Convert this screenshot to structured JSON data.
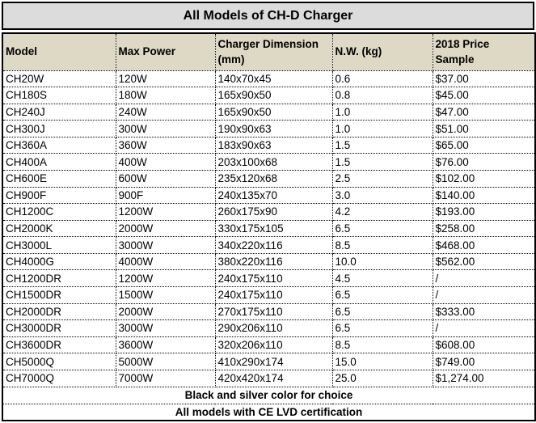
{
  "title": "All Models of CH-D Charger",
  "table": {
    "headers": [
      "Model",
      "Max Power",
      "Charger Dimension\n(mm)",
      "N.W. (kg)",
      "2018 Price\nSample"
    ],
    "rows": [
      [
        "CH20W",
        "120W",
        "140x70x45",
        "0.6",
        "$37.00"
      ],
      [
        "CH180S",
        "180W",
        "165x90x50",
        "0.8",
        "$45.00"
      ],
      [
        "CH240J",
        "240W",
        "165x90x50",
        "1.0",
        "$47.00"
      ],
      [
        "CH300J",
        "300W",
        "190x90x63",
        "1.0",
        "$51.00"
      ],
      [
        "CH360A",
        "360W",
        "183x90x63",
        "1.5",
        "$65.00"
      ],
      [
        "CH400A",
        "400W",
        "203x100x68",
        "1.5",
        "$76.00"
      ],
      [
        "CH600E",
        "600W",
        "235x120x68",
        "2.5",
        "$102.00"
      ],
      [
        "CH900F",
        "900F",
        "240x135x70",
        "3.0",
        "$140.00"
      ],
      [
        "CH1200C",
        "1200W",
        "260x175x90",
        "4.2",
        "$193.00"
      ],
      [
        "CH2000K",
        "2000W",
        "330x175x105",
        "6.5",
        "$258.00"
      ],
      [
        "CH3000L",
        "3000W",
        "340x220x116",
        "8.5",
        "$468.00"
      ],
      [
        "CH4000G",
        "4000W",
        "380x220x116",
        "10.0",
        "$562.00"
      ],
      [
        "CH1200DR",
        "1200W",
        "240x175x110",
        "4.5",
        "/"
      ],
      [
        "CH1500DR",
        "1500W",
        "240x175x110",
        "6.5",
        "/"
      ],
      [
        "CH2000DR",
        "2000W",
        "270x175x110",
        "6.5",
        "$333.00"
      ],
      [
        "CH3000DR",
        "3000W",
        "290x206x110",
        "6.5",
        "/"
      ],
      [
        "CH3600DR",
        "3600W",
        "320x206x110",
        "8.5",
        "$608.00"
      ],
      [
        "CH5000Q",
        "5000W",
        "410x290x174",
        "15.0",
        "$749.00"
      ],
      [
        "CH7000Q",
        "7000W",
        "420x420x174",
        "25.0",
        "$1,274.00"
      ]
    ],
    "footer_notes": [
      "Black and silver color for choice",
      "All models with CE LVD certification"
    ]
  },
  "colors": {
    "title_bg": "#dcdcdc",
    "header_bg": "#ddd9c4",
    "border": "#000000"
  }
}
